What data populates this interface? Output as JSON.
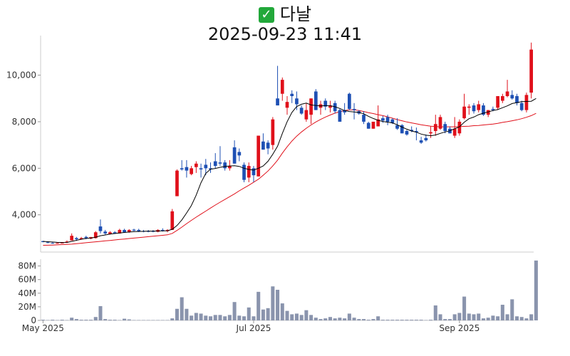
{
  "header": {
    "check_icon": "check-mark-icon",
    "name": "다날",
    "datetime": "2025-09-23 11:41"
  },
  "colors": {
    "up": "#e0101a",
    "down": "#1e50b4",
    "ma_short": "#000000",
    "ma_long": "#e0101a",
    "volume": "#8a94ad"
  },
  "chart_data": {
    "type": "candlestick",
    "price": {
      "ylim": [
        2400,
        11700
      ],
      "yticks": [
        4000,
        6000,
        8000,
        10000
      ],
      "ytick_labels": [
        "4,000",
        "6,000",
        "8,000",
        "10,000"
      ],
      "ohlc": [
        [
          2870,
          2880,
          2820,
          2830
        ],
        [
          2820,
          2860,
          2780,
          2790
        ],
        [
          2790,
          2820,
          2760,
          2770
        ],
        [
          2770,
          2800,
          2760,
          2790
        ],
        [
          2780,
          2820,
          2770,
          2800
        ],
        [
          2810,
          2900,
          2790,
          2850
        ],
        [
          2900,
          3200,
          2900,
          3100
        ],
        [
          3000,
          3050,
          2880,
          2950
        ],
        [
          2950,
          3050,
          2930,
          3000
        ],
        [
          3050,
          3100,
          2950,
          3000
        ],
        [
          2980,
          3050,
          2950,
          3040
        ],
        [
          3000,
          3300,
          2980,
          3250
        ],
        [
          3500,
          3800,
          3200,
          3300
        ],
        [
          3280,
          3350,
          3150,
          3200
        ],
        [
          3180,
          3300,
          3150,
          3250
        ],
        [
          3250,
          3300,
          3180,
          3200
        ],
        [
          3200,
          3400,
          3200,
          3350
        ],
        [
          3350,
          3400,
          3230,
          3250
        ],
        [
          3250,
          3380,
          3230,
          3350
        ],
        [
          3360,
          3400,
          3300,
          3320
        ],
        [
          3350,
          3400,
          3260,
          3300
        ],
        [
          3300,
          3350,
          3250,
          3280
        ],
        [
          3300,
          3350,
          3250,
          3280
        ],
        [
          3300,
          3350,
          3250,
          3270
        ],
        [
          3270,
          3380,
          3250,
          3350
        ],
        [
          3350,
          3420,
          3280,
          3330
        ],
        [
          3300,
          3380,
          3250,
          3350
        ],
        [
          3350,
          4250,
          3350,
          4150
        ],
        [
          4800,
          5950,
          4800,
          5900
        ],
        [
          6000,
          6350,
          5900,
          5950
        ],
        [
          6050,
          6350,
          5600,
          5900
        ],
        [
          5750,
          6100,
          5700,
          6000
        ],
        [
          6050,
          6300,
          5800,
          6200
        ],
        [
          6000,
          6200,
          5600,
          5950
        ],
        [
          6150,
          6400,
          5700,
          6000
        ],
        [
          6000,
          6250,
          5800,
          5950
        ],
        [
          6300,
          6650,
          6000,
          6100
        ],
        [
          6250,
          6950,
          6100,
          6200
        ],
        [
          6250,
          6350,
          5900,
          6000
        ],
        [
          6000,
          6350,
          5900,
          6100
        ],
        [
          6900,
          7200,
          6200,
          6200
        ],
        [
          6700,
          6850,
          6300,
          6550
        ],
        [
          6150,
          6250,
          5400,
          5500
        ],
        [
          5600,
          6250,
          5400,
          6100
        ],
        [
          6000,
          6100,
          5400,
          5700
        ],
        [
          5650,
          7400,
          5650,
          7400
        ],
        [
          7150,
          7500,
          6800,
          6800
        ],
        [
          7100,
          7200,
          6600,
          6850
        ],
        [
          7000,
          8200,
          6800,
          8100
        ],
        [
          9000,
          10400,
          8700,
          8700
        ],
        [
          9200,
          9900,
          8900,
          9800
        ],
        [
          8600,
          9100,
          8300,
          8850
        ],
        [
          9200,
          9350,
          8800,
          9100
        ],
        [
          9000,
          9300,
          8500,
          8750
        ],
        [
          8600,
          8700,
          8300,
          8350
        ],
        [
          8100,
          8800,
          8000,
          8500
        ],
        [
          8300,
          9000,
          7900,
          9000
        ],
        [
          9300,
          9400,
          8500,
          8500
        ],
        [
          8600,
          8900,
          8300,
          8750
        ],
        [
          8900,
          9000,
          8500,
          8650
        ],
        [
          8600,
          8900,
          8400,
          8700
        ],
        [
          8800,
          8900,
          8350,
          8450
        ],
        [
          8500,
          8550,
          8000,
          8000
        ],
        [
          8500,
          8800,
          8300,
          8400
        ],
        [
          9200,
          9250,
          8500,
          8550
        ],
        [
          8550,
          8800,
          8100,
          8500
        ],
        [
          8450,
          8500,
          8300,
          8350
        ],
        [
          8300,
          8450,
          7900,
          8000
        ],
        [
          7950,
          8000,
          7700,
          7700
        ],
        [
          7700,
          8000,
          7700,
          8000
        ],
        [
          7800,
          8700,
          7800,
          8100
        ],
        [
          8150,
          8250,
          7950,
          8050
        ],
        [
          8200,
          8300,
          7850,
          8000
        ],
        [
          8100,
          8150,
          7900,
          7950
        ],
        [
          7850,
          8150,
          7650,
          7700
        ],
        [
          7850,
          7900,
          7500,
          7500
        ],
        [
          7600,
          7650,
          7400,
          7450
        ],
        [
          7650,
          7800,
          7550,
          7600
        ],
        [
          7600,
          7750,
          7200,
          7550
        ],
        [
          7200,
          7350,
          7050,
          7100
        ],
        [
          7300,
          7450,
          7150,
          7200
        ],
        [
          7500,
          7800,
          7300,
          7550
        ],
        [
          7600,
          8300,
          7400,
          7900
        ],
        [
          7700,
          8300,
          7650,
          8200
        ],
        [
          7900,
          8000,
          7500,
          7600
        ],
        [
          7700,
          7800,
          7500,
          7500
        ],
        [
          7400,
          8200,
          7300,
          7700
        ],
        [
          7500,
          8100,
          7400,
          8000
        ],
        [
          8150,
          9200,
          8100,
          8650
        ],
        [
          8600,
          8750,
          8300,
          8650
        ],
        [
          8700,
          8800,
          8350,
          8450
        ],
        [
          8500,
          8900,
          8400,
          8750
        ],
        [
          8700,
          8800,
          8250,
          8300
        ],
        [
          8300,
          8500,
          8200,
          8500
        ],
        [
          8550,
          8650,
          8450,
          8500
        ],
        [
          8600,
          9100,
          8500,
          9100
        ],
        [
          8900,
          9200,
          8800,
          9100
        ],
        [
          9100,
          9800,
          9050,
          9300
        ],
        [
          9150,
          9350,
          8950,
          9000
        ],
        [
          9100,
          9200,
          8700,
          8800
        ],
        [
          8800,
          8900,
          8450,
          8500
        ],
        [
          8500,
          9250,
          8400,
          9150
        ],
        [
          9250,
          11400,
          9000,
          11100
        ]
      ],
      "ma_short": [
        2860,
        2845,
        2830,
        2815,
        2810,
        2812,
        2860,
        2905,
        2950,
        2985,
        3000,
        3040,
        3100,
        3135,
        3170,
        3195,
        3220,
        3240,
        3260,
        3275,
        3285,
        3290,
        3300,
        3300,
        3305,
        3310,
        3315,
        3380,
        3540,
        3780,
        4080,
        4400,
        4840,
        5380,
        5780,
        5960,
        5990,
        6040,
        6080,
        6100,
        6110,
        6080,
        6000,
        5950,
        5920,
        6000,
        6100,
        6300,
        6600,
        6950,
        7500,
        8000,
        8400,
        8650,
        8750,
        8800,
        8720,
        8700,
        8680,
        8690,
        8690,
        8640,
        8570,
        8480,
        8440,
        8420,
        8400,
        8340,
        8230,
        8140,
        8060,
        8010,
        7980,
        7950,
        7870,
        7770,
        7680,
        7600,
        7550,
        7470,
        7420,
        7400,
        7430,
        7500,
        7560,
        7610,
        7700,
        7780,
        7980,
        8130,
        8200,
        8300,
        8370,
        8420,
        8480,
        8520,
        8600,
        8680,
        8780,
        8820,
        8860,
        8870,
        8880,
        9000
      ],
      "ma_long": [
        2690,
        2695,
        2700,
        2710,
        2720,
        2730,
        2740,
        2760,
        2780,
        2800,
        2820,
        2840,
        2860,
        2880,
        2900,
        2920,
        2940,
        2960,
        2980,
        3000,
        3020,
        3040,
        3060,
        3080,
        3100,
        3120,
        3140,
        3200,
        3330,
        3470,
        3620,
        3760,
        3900,
        4030,
        4160,
        4290,
        4420,
        4540,
        4660,
        4780,
        4900,
        5030,
        5150,
        5270,
        5400,
        5530,
        5700,
        5880,
        6100,
        6350,
        6650,
        6920,
        7170,
        7380,
        7560,
        7720,
        7860,
        7990,
        8100,
        8200,
        8290,
        8370,
        8430,
        8480,
        8510,
        8510,
        8480,
        8440,
        8390,
        8350,
        8300,
        8260,
        8210,
        8150,
        8090,
        8040,
        7990,
        7950,
        7910,
        7870,
        7840,
        7810,
        7790,
        7780,
        7780,
        7780,
        7780,
        7790,
        7800,
        7810,
        7830,
        7840,
        7860,
        7880,
        7900,
        7930,
        7970,
        8000,
        8040,
        8080,
        8130,
        8190,
        8260,
        8360
      ]
    },
    "volume": {
      "ylim": [
        0,
        90000000
      ],
      "yticks": [
        0,
        20000000,
        40000000,
        60000000,
        80000000
      ],
      "ytick_labels": [
        "0",
        "20M",
        "40M",
        "60M",
        "80M"
      ],
      "values": [
        1000000,
        500000,
        1000000,
        500000,
        1000000,
        500000,
        4000000,
        2000000,
        1000000,
        1000000,
        1000000,
        5000000,
        21000000,
        2000000,
        1000000,
        1000000,
        500000,
        2500000,
        1500000,
        500000,
        500000,
        500000,
        500000,
        500000,
        500000,
        500000,
        500000,
        3000000,
        17000000,
        34000000,
        17000000,
        7000000,
        11000000,
        10000000,
        7000000,
        6000000,
        8000000,
        8000000,
        6000000,
        8000000,
        27000000,
        7000000,
        6000000,
        19000000,
        6000000,
        42000000,
        16000000,
        18000000,
        50000000,
        45000000,
        25000000,
        14000000,
        9000000,
        10000000,
        8000000,
        15000000,
        8000000,
        4000000,
        2000000,
        3000000,
        5000000,
        3000000,
        4000000,
        3000000,
        10000000,
        4000000,
        2000000,
        2000000,
        1000000,
        2000000,
        6000000,
        1000000,
        1000000,
        1000000,
        1000000,
        1000000,
        1000000,
        1000000,
        1000000,
        1000000,
        500000,
        1000000,
        22000000,
        9000000,
        2000000,
        2000000,
        9000000,
        11000000,
        35000000,
        10000000,
        9000000,
        10000000,
        3000000,
        4000000,
        7000000,
        6000000,
        23000000,
        9000000,
        31000000,
        6000000,
        5000000,
        3000000,
        9000000,
        88000000
      ]
    },
    "xticks": [
      {
        "index": 0,
        "label": "May 2025"
      },
      {
        "index": 44,
        "label": "Jul 2025"
      },
      {
        "index": 87,
        "label": "Sep 2025"
      }
    ]
  }
}
